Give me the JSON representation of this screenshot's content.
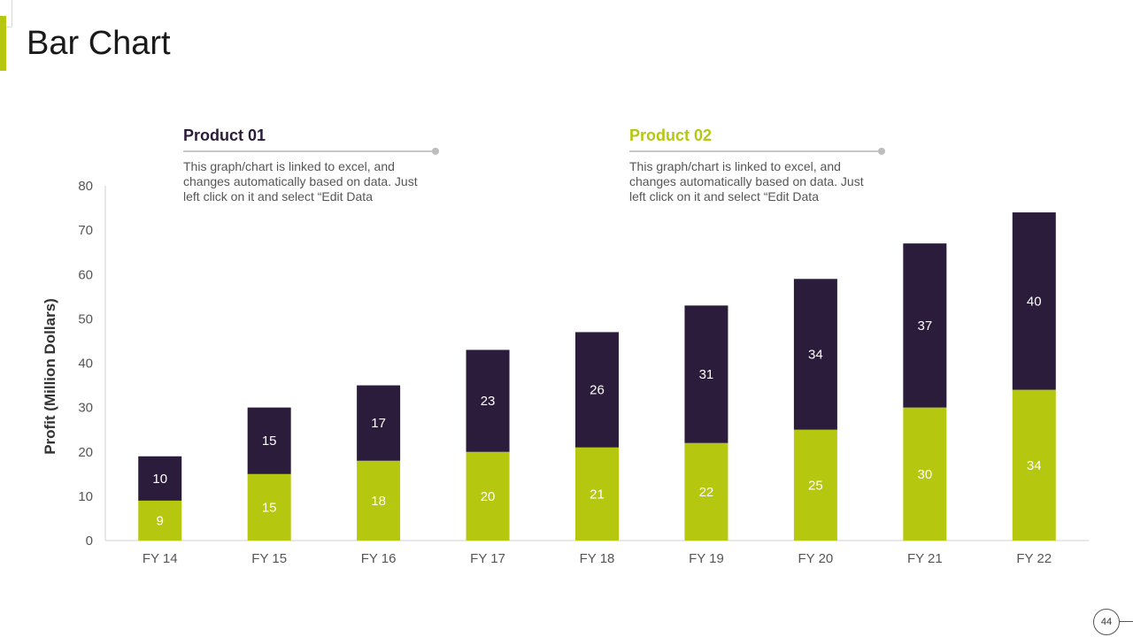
{
  "page": {
    "title": "Bar Chart",
    "page_number": "44"
  },
  "legend": [
    {
      "name": "Product 01",
      "color": "#2a1c3a",
      "description": "This graph/chart is linked to excel, and changes automatically based on data. Just left click on it and select “Edit Data"
    },
    {
      "name": "Product 02",
      "color": "#b5c80f",
      "description": "This graph/chart is linked to excel, and changes automatically based on data. Just left click on it and select “Edit Data"
    }
  ],
  "chart_data": {
    "type": "bar",
    "stacked": true,
    "categories": [
      "FY 14",
      "FY 15",
      "FY 16",
      "FY 17",
      "FY 18",
      "FY 19",
      "FY 20",
      "FY 21",
      "FY 22"
    ],
    "series": [
      {
        "name": "Product 02",
        "color": "#b5c80f",
        "values": [
          9,
          15,
          18,
          20,
          21,
          22,
          25,
          30,
          34
        ]
      },
      {
        "name": "Product 01",
        "color": "#2a1c3a",
        "values": [
          10,
          15,
          17,
          23,
          26,
          31,
          34,
          37,
          40
        ]
      }
    ],
    "ylabel": "Profit  (Million Dollars)",
    "ylim": [
      0,
      80
    ],
    "yticks": [
      0,
      10,
      20,
      30,
      40,
      50,
      60,
      70,
      80
    ],
    "grid": false,
    "legend_position": "top"
  }
}
